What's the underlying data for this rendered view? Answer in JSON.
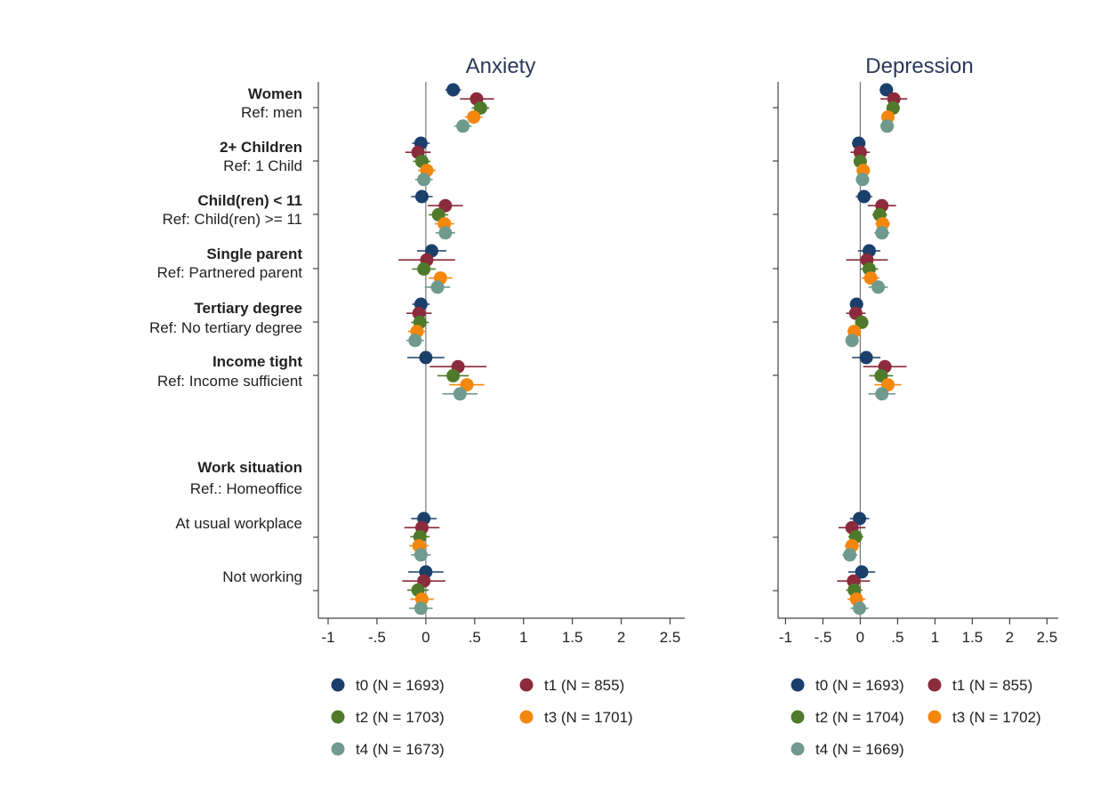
{
  "chart_data": {
    "type": "scatter",
    "subtype": "coefficient-plot",
    "x_ticks": [
      -1,
      -0.5,
      0,
      0.5,
      1,
      1.5,
      2,
      2.5
    ],
    "x_tick_labels": [
      "-1",
      "-.5",
      "0",
      ".5",
      "1",
      "1.5",
      "2",
      "2.5"
    ],
    "xlim": [
      -1.1,
      2.65
    ],
    "covariates": [
      {
        "id": "women",
        "label": "Women",
        "ref": "Ref: men",
        "bold": true
      },
      {
        "id": "children",
        "label": "2+ Children",
        "ref": "Ref: 1 Child",
        "bold": true
      },
      {
        "id": "child11",
        "label": "Child(ren) < 11",
        "ref": "Ref: Child(ren) >= 11",
        "bold": true
      },
      {
        "id": "single",
        "label": "Single parent",
        "ref": "Ref: Partnered parent",
        "bold": true
      },
      {
        "id": "tertiary",
        "label": "Tertiary degree",
        "ref": "Ref: No tertiary degree",
        "bold": true
      },
      {
        "id": "income",
        "label": "Income tight",
        "ref": "Ref: Income sufficient",
        "bold": true
      },
      {
        "id": "work_header",
        "label": "Work situation",
        "ref": "Ref.: Homeoffice",
        "bold": true,
        "header_only": true
      },
      {
        "id": "workplace",
        "label": "At usual workplace",
        "ref": "",
        "bold": false
      },
      {
        "id": "notworking",
        "label": "Not working",
        "ref": "",
        "bold": false
      }
    ],
    "series_colors": [
      "#1b3f6b",
      "#8b2b3b",
      "#4f7a2b",
      "#f5870f",
      "#6f9a8d"
    ],
    "panels": [
      {
        "title": "Anxiety",
        "legend": [
          "t0 (N = 1693)",
          "t1 (N = 855)",
          "t2 (N = 1703)",
          "t3 (N = 1701)",
          "t4 (N = 1673)"
        ],
        "estimates": {
          "women": [
            [
              0.28,
              0.2,
              0.36
            ],
            [
              0.52,
              0.35,
              0.7
            ],
            [
              0.56,
              0.47,
              0.65
            ],
            [
              0.49,
              0.4,
              0.58
            ],
            [
              0.38,
              0.29,
              0.47
            ]
          ],
          "children": [
            [
              -0.05,
              -0.14,
              0.04
            ],
            [
              -0.08,
              -0.21,
              0.05
            ],
            [
              -0.04,
              -0.13,
              0.05
            ],
            [
              0.01,
              -0.08,
              0.1
            ],
            [
              -0.02,
              -0.11,
              0.07
            ]
          ],
          "child11": [
            [
              -0.04,
              -0.15,
              0.07
            ],
            [
              0.2,
              0.02,
              0.38
            ],
            [
              0.13,
              0.03,
              0.23
            ],
            [
              0.19,
              0.09,
              0.29
            ],
            [
              0.2,
              0.1,
              0.3
            ]
          ],
          "single": [
            [
              0.06,
              -0.09,
              0.21
            ],
            [
              0.01,
              -0.28,
              0.3
            ],
            [
              -0.02,
              -0.14,
              0.1
            ],
            [
              0.15,
              0.03,
              0.27
            ],
            [
              0.12,
              -0.01,
              0.25
            ]
          ],
          "tertiary": [
            [
              -0.05,
              -0.14,
              0.04
            ],
            [
              -0.07,
              -0.2,
              0.06
            ],
            [
              -0.06,
              -0.15,
              0.03
            ],
            [
              -0.09,
              -0.18,
              0.0
            ],
            [
              -0.11,
              -0.2,
              -0.02
            ]
          ],
          "income": [
            [
              0.0,
              -0.19,
              0.19
            ],
            [
              0.33,
              0.04,
              0.62
            ],
            [
              0.28,
              0.12,
              0.44
            ],
            [
              0.42,
              0.24,
              0.6
            ],
            [
              0.35,
              0.17,
              0.53
            ]
          ],
          "workplace": [
            [
              -0.02,
              -0.15,
              0.11
            ],
            [
              -0.04,
              -0.22,
              0.14
            ],
            [
              -0.06,
              -0.16,
              0.04
            ],
            [
              -0.07,
              -0.17,
              0.03
            ],
            [
              -0.05,
              -0.15,
              0.05
            ]
          ],
          "notworking": [
            [
              0.0,
              -0.18,
              0.18
            ],
            [
              -0.02,
              -0.24,
              0.2
            ],
            [
              -0.08,
              -0.19,
              0.03
            ],
            [
              -0.04,
              -0.16,
              0.08
            ],
            [
              -0.05,
              -0.17,
              0.07
            ]
          ]
        }
      },
      {
        "title": "Depression",
        "legend": [
          "t0 (N = 1693)",
          "t1 (N = 855)",
          "t2 (N = 1704)",
          "t3 (N = 1702)",
          "t4 (N = 1669)"
        ],
        "estimates": {
          "women": [
            [
              0.35,
              0.26,
              0.44
            ],
            [
              0.45,
              0.27,
              0.63
            ],
            [
              0.44,
              0.35,
              0.53
            ],
            [
              0.37,
              0.28,
              0.46
            ],
            [
              0.36,
              0.27,
              0.45
            ]
          ],
          "children": [
            [
              -0.02,
              -0.11,
              0.07
            ],
            [
              0.0,
              -0.13,
              0.13
            ],
            [
              0.0,
              -0.09,
              0.09
            ],
            [
              0.04,
              -0.05,
              0.13
            ],
            [
              0.03,
              -0.06,
              0.12
            ]
          ],
          "child11": [
            [
              0.05,
              -0.06,
              0.16
            ],
            [
              0.29,
              0.1,
              0.48
            ],
            [
              0.26,
              0.16,
              0.36
            ],
            [
              0.3,
              0.2,
              0.4
            ],
            [
              0.29,
              0.19,
              0.39
            ]
          ],
          "single": [
            [
              0.12,
              -0.03,
              0.27
            ],
            [
              0.09,
              -0.19,
              0.37
            ],
            [
              0.12,
              0.0,
              0.24
            ],
            [
              0.14,
              0.02,
              0.26
            ],
            [
              0.24,
              0.11,
              0.37
            ]
          ],
          "tertiary": [
            [
              -0.05,
              -0.14,
              0.04
            ],
            [
              -0.06,
              -0.19,
              0.07
            ],
            [
              0.02,
              -0.07,
              0.11
            ],
            [
              -0.08,
              -0.17,
              0.01
            ],
            [
              -0.11,
              -0.2,
              -0.02
            ]
          ],
          "income": [
            [
              0.08,
              -0.11,
              0.27
            ],
            [
              0.33,
              0.04,
              0.62
            ],
            [
              0.28,
              0.12,
              0.44
            ],
            [
              0.37,
              0.19,
              0.55
            ],
            [
              0.29,
              0.11,
              0.47
            ]
          ],
          "workplace": [
            [
              -0.01,
              -0.14,
              0.12
            ],
            [
              -0.11,
              -0.29,
              0.07
            ],
            [
              -0.06,
              -0.16,
              0.04
            ],
            [
              -0.11,
              -0.21,
              -0.01
            ],
            [
              -0.14,
              -0.24,
              -0.04
            ]
          ],
          "notworking": [
            [
              0.02,
              -0.16,
              0.2
            ],
            [
              -0.09,
              -0.31,
              0.13
            ],
            [
              -0.08,
              -0.19,
              0.03
            ],
            [
              -0.05,
              -0.17,
              0.07
            ],
            [
              -0.01,
              -0.13,
              0.11
            ]
          ]
        }
      }
    ]
  }
}
